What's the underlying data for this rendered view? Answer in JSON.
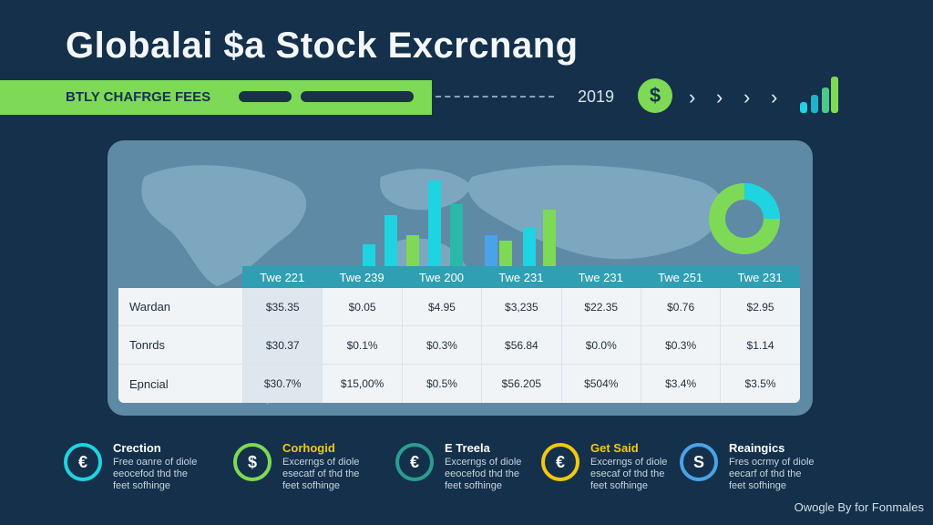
{
  "header": {
    "title": "Globalai $a Stock Excrcnang",
    "banner_label": "BTLY CHAFRGE FEES",
    "year": "2019",
    "currency_symbol": "$",
    "chevrons": [
      "›",
      "›",
      "›",
      "›"
    ]
  },
  "colors": {
    "background": "#14304a",
    "accent_green": "#7ed957",
    "accent_cyan": "#1fd3e0",
    "accent_yellow": "#f2c811",
    "accent_blue": "#4aa3e8",
    "accent_teal": "#2a9d8f",
    "table_header": "#2f9fb4"
  },
  "table": {
    "columns": [
      "Twe 221",
      "Twe 239",
      "Twe 200",
      "Twe 231",
      "Twe 231",
      "Twe 251",
      "Twe 231"
    ],
    "rows": [
      {
        "label": "Wardan",
        "values": [
          "$35.35",
          "$0.05",
          "$4.95",
          "$3,235",
          "$22.35",
          "$0.76",
          "$2.95"
        ]
      },
      {
        "label": "Tonrds",
        "values": [
          "$30.37",
          "$0.1%",
          "$0.3%",
          "$56.84",
          "$0.0%",
          "$0.3%",
          "$1.14"
        ]
      },
      {
        "label": "Epncial",
        "values": [
          "$30.7%",
          "$15,00%",
          "$0.5%",
          "$56.205",
          "$504%",
          "$3.4%",
          "$3.5%"
        ]
      }
    ]
  },
  "features": [
    {
      "symbol": "€",
      "title": "Crection",
      "desc": "Free oanre of diole eeocefod thd the feet sofhinge",
      "color": "#1fd3e0"
    },
    {
      "symbol": "$",
      "title": "Corhogid",
      "desc": "Excerngs of diole esecatf of thd the feet sofhinge",
      "color": "#7ed957"
    },
    {
      "symbol": "€",
      "title": "E Treela",
      "desc": "Excerngs of diole eeocefod thd the feet sofhinge",
      "color": "#2a9d8f"
    },
    {
      "symbol": "€",
      "title": "Get Said",
      "desc": "Excerngs of diole esecaf of thd the feet sofhinge",
      "color": "#f2c811"
    },
    {
      "symbol": "S",
      "title": "Reaingics",
      "desc": "Fres ocrmy of diole eecarf of thd the feet sofhinge",
      "color": "#4aa3e8"
    }
  ],
  "footer": "Owogle By for Fonmales"
}
